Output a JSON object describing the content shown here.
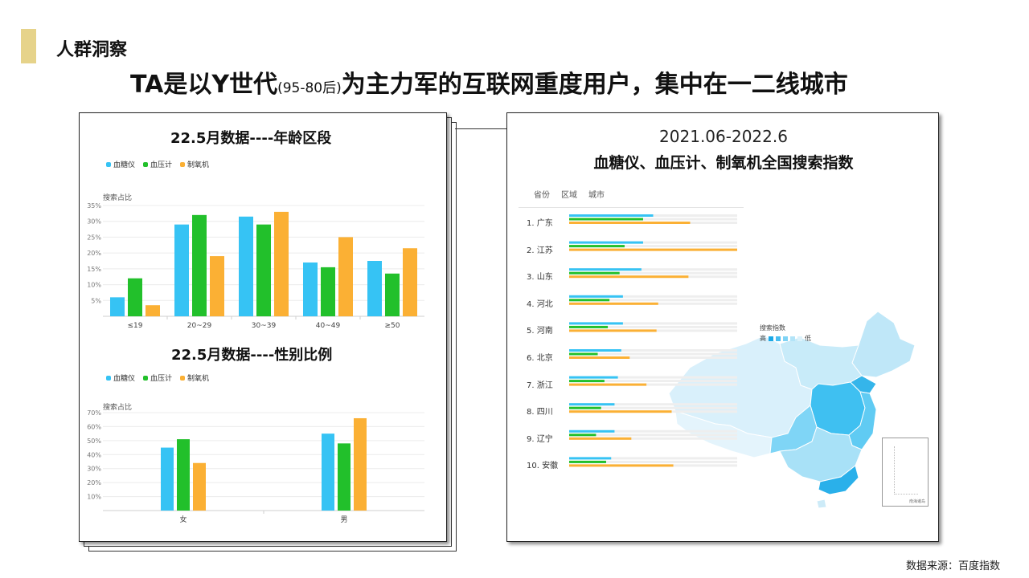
{
  "header": {
    "section_title": "人群洞察",
    "headline_main_1": "TA是以Y世代",
    "headline_small": "(95-80后)",
    "headline_main_2": "为主力军的互联网重度用户，集中在一二线城市"
  },
  "colors": {
    "blood_glucose": "#36c3f4",
    "blood_pressure": "#22c02b",
    "oxygen": "#fbb034",
    "accent": "#e6d38a"
  },
  "age_chart": {
    "title": "22.5月数据----年龄区段",
    "ylabel": "搜索占比",
    "legend": [
      "血糖仪",
      "血压计",
      "制氧机"
    ]
  },
  "gender_chart": {
    "title": "22.5月数据----性别比例",
    "ylabel": "搜索占比",
    "legend": [
      "血糖仪",
      "血压计",
      "制氧机"
    ]
  },
  "map_panel": {
    "date_range": "2021.06-2022.6",
    "title": "血糖仪、血压计、制氧机全国搜索指数",
    "tabs": [
      "省份",
      "区域",
      "城市"
    ],
    "legend_title": "搜索指数",
    "legend_high": "高",
    "legend_low": "低",
    "inset_label": "南海诸岛"
  },
  "chart_data": [
    {
      "type": "bar",
      "title": "22.5月数据----年龄区段",
      "ylabel": "搜索占比",
      "categories": [
        "≤19",
        "20~29",
        "30~39",
        "40~49",
        "≥50"
      ],
      "yticks": [
        "5%",
        "10%",
        "15%",
        "20%",
        "25%",
        "30%",
        "35%"
      ],
      "ylim": [
        0,
        35
      ],
      "series": [
        {
          "name": "血糖仪",
          "values": [
            6,
            29,
            31.5,
            17,
            17.5
          ]
        },
        {
          "name": "血压计",
          "values": [
            12,
            32,
            29,
            15.5,
            13.5
          ]
        },
        {
          "name": "制氧机",
          "values": [
            3.5,
            19,
            33,
            25,
            21.5
          ]
        }
      ]
    },
    {
      "type": "bar",
      "title": "22.5月数据----性别比例",
      "ylabel": "搜索占比",
      "categories": [
        "女",
        "男"
      ],
      "yticks": [
        "10%",
        "20%",
        "30%",
        "40%",
        "50%",
        "60%",
        "70%"
      ],
      "ylim": [
        0,
        70
      ],
      "series": [
        {
          "name": "血糖仪",
          "values": [
            45,
            55
          ]
        },
        {
          "name": "血压计",
          "values": [
            51,
            48
          ]
        },
        {
          "name": "制氧机",
          "values": [
            34,
            66
          ]
        }
      ]
    },
    {
      "type": "bar",
      "title": "血糖仪、血压计、制氧机全国搜索指数",
      "orientation": "horizontal",
      "categories": [
        "1.  广东",
        "2.  江苏",
        "3.  山东",
        "4.  河北",
        "5.  河南",
        "6.  北京",
        "7.  浙江",
        "8.  四川",
        "9.  辽宁",
        "10. 安徽"
      ],
      "xlim": [
        0,
        100
      ],
      "series": [
        {
          "name": "血糖仪",
          "values": [
            50,
            44,
            43,
            32,
            32,
            31,
            29,
            27,
            27,
            25
          ]
        },
        {
          "name": "血压计",
          "values": [
            44,
            33,
            30,
            24,
            23,
            17,
            21,
            19,
            16,
            22
          ]
        },
        {
          "name": "制氧机",
          "values": [
            72,
            100,
            71,
            53,
            52,
            36,
            46,
            61,
            37,
            62
          ]
        }
      ]
    }
  ],
  "footer": {
    "source": "数据来源：百度指数"
  }
}
